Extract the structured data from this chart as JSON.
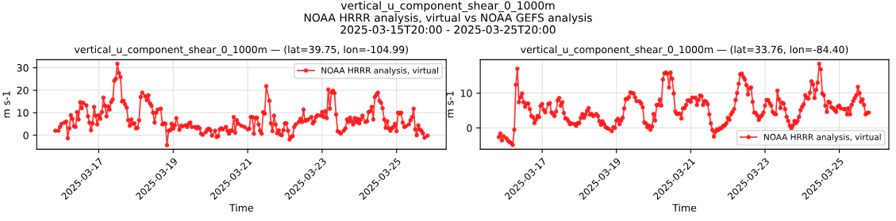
{
  "chart_data": [
    {
      "type": "line",
      "title": "vertical_u_component_shear_0_1000m — (lat=39.75, lon=-104.99)",
      "xlabel": "Time",
      "ylabel": "m s-1",
      "annotations": [
        "vertical_u_component_shear_0_1000m\nNOAA HRRR analysis, virtual vs NOAA GEFS analysis\n2025-03-15T20:00 - 2025-03-25T20:00"
      ],
      "xlim": [
        "2025-03-15T08:00",
        "2025-03-26T08:00"
      ],
      "xticks": [
        "2025-03-17",
        "2025-03-19",
        "2025-03-21",
        "2025-03-23",
        "2025-03-25"
      ],
      "ylim": [
        -6.2,
        33.6
      ],
      "yticks": [
        0,
        10,
        20,
        30
      ],
      "grid": true,
      "legend": "top right",
      "marker": "circle",
      "line_style": "solid",
      "series": [
        {
          "name": "NOAA HRRR analysis, virtual",
          "color": "#ff1a1a",
          "x": [
            "2025-03-15T20:00",
            "2025-03-15T22:00",
            "2025-03-15T23:00",
            "2025-03-16T00:00",
            "2025-03-16T02:00",
            "2025-03-16T03:00",
            "2025-03-16T04:00",
            "2025-03-16T05:00",
            "2025-03-16T06:00",
            "2025-03-16T07:00",
            "2025-03-16T08:00",
            "2025-03-16T09:00",
            "2025-03-16T10:00",
            "2025-03-16T11:00",
            "2025-03-16T12:00",
            "2025-03-16T13:00",
            "2025-03-16T14:00",
            "2025-03-16T16:00",
            "2025-03-16T17:00",
            "2025-03-16T18:00",
            "2025-03-16T19:00",
            "2025-03-16T20:00",
            "2025-03-16T21:00",
            "2025-03-16T22:00",
            "2025-03-16T23:00",
            "2025-03-17T00:00",
            "2025-03-17T01:00",
            "2025-03-17T02:00",
            "2025-03-17T03:00",
            "2025-03-17T04:00",
            "2025-03-17T05:00",
            "2025-03-17T06:00",
            "2025-03-17T07:00",
            "2025-03-17T08:00",
            "2025-03-17T09:00",
            "2025-03-17T10:00",
            "2025-03-17T11:00",
            "2025-03-17T12:00",
            "2025-03-17T13:00",
            "2025-03-17T14:00",
            "2025-03-17T15:00",
            "2025-03-17T16:00",
            "2025-03-17T17:00",
            "2025-03-17T18:00",
            "2025-03-17T19:00",
            "2025-03-17T20:00",
            "2025-03-17T21:00",
            "2025-03-17T22:00",
            "2025-03-17T23:00",
            "2025-03-18T00:00",
            "2025-03-18T01:00",
            "2025-03-18T02:00",
            "2025-03-18T03:00",
            "2025-03-18T04:00",
            "2025-03-18T06:00",
            "2025-03-18T07:00",
            "2025-03-18T08:00",
            "2025-03-18T09:00",
            "2025-03-18T10:00",
            "2025-03-18T11:00",
            "2025-03-18T12:00",
            "2025-03-18T13:00",
            "2025-03-18T14:00",
            "2025-03-18T16:00",
            "2025-03-18T17:00",
            "2025-03-18T18:00",
            "2025-03-18T19:00",
            "2025-03-18T20:00",
            "2025-03-18T21:00",
            "2025-03-18T22:00",
            "2025-03-18T23:00",
            "2025-03-19T00:00",
            "2025-03-19T01:00",
            "2025-03-19T02:00",
            "2025-03-19T04:00",
            "2025-03-19T05:00",
            "2025-03-19T06:00",
            "2025-03-19T08:00",
            "2025-03-19T09:00",
            "2025-03-19T10:00",
            "2025-03-19T11:00",
            "2025-03-19T12:00",
            "2025-03-19T14:00",
            "2025-03-19T15:00",
            "2025-03-19T16:00",
            "2025-03-19T17:00",
            "2025-03-19T18:00",
            "2025-03-19T19:00",
            "2025-03-19T21:00",
            "2025-03-19T22:00",
            "2025-03-19T23:00",
            "2025-03-20T00:00",
            "2025-03-20T01:00",
            "2025-03-20T03:00",
            "2025-03-20T04:00",
            "2025-03-20T05:00",
            "2025-03-20T06:00",
            "2025-03-20T07:00",
            "2025-03-20T08:00",
            "2025-03-20T10:00",
            "2025-03-20T11:00",
            "2025-03-20T12:00",
            "2025-03-20T13:00",
            "2025-03-20T14:00",
            "2025-03-20T15:00",
            "2025-03-20T16:00",
            "2025-03-20T17:00",
            "2025-03-20T18:00",
            "2025-03-20T20:00",
            "2025-03-20T22:00",
            "2025-03-21T00:00",
            "2025-03-21T01:00",
            "2025-03-21T02:00",
            "2025-03-21T03:00",
            "2025-03-21T04:00",
            "2025-03-21T05:00",
            "2025-03-21T06:00",
            "2025-03-21T07:00",
            "2025-03-21T08:00",
            "2025-03-21T09:00",
            "2025-03-21T10:00",
            "2025-03-21T11:00",
            "2025-03-21T12:00",
            "2025-03-21T14:00",
            "2025-03-21T15:00",
            "2025-03-21T16:00",
            "2025-03-21T17:00",
            "2025-03-21T18:00",
            "2025-03-21T19:00",
            "2025-03-21T20:00",
            "2025-03-21T21:00",
            "2025-03-21T22:00",
            "2025-03-21T23:00",
            "2025-03-22T00:00",
            "2025-03-22T01:00",
            "2025-03-22T02:00",
            "2025-03-22T03:00",
            "2025-03-22T04:00",
            "2025-03-22T05:00",
            "2025-03-22T06:00",
            "2025-03-22T07:00",
            "2025-03-22T09:00",
            "2025-03-22T10:00",
            "2025-03-22T11:00",
            "2025-03-22T12:00",
            "2025-03-22T13:00",
            "2025-03-22T14:00",
            "2025-03-22T15:00",
            "2025-03-22T17:00",
            "2025-03-22T18:00",
            "2025-03-22T19:00",
            "2025-03-22T20:00",
            "2025-03-22T21:00",
            "2025-03-22T23:00",
            "2025-03-23T00:00",
            "2025-03-23T01:00",
            "2025-03-23T02:00",
            "2025-03-23T03:00",
            "2025-03-23T04:00",
            "2025-03-23T05:00",
            "2025-03-23T06:00",
            "2025-03-23T07:00",
            "2025-03-23T08:00",
            "2025-03-23T09:00",
            "2025-03-23T10:00",
            "2025-03-23T11:00",
            "2025-03-23T12:00",
            "2025-03-23T14:00",
            "2025-03-23T15:00",
            "2025-03-23T16:00",
            "2025-03-23T17:00",
            "2025-03-23T18:00",
            "2025-03-23T19:00",
            "2025-03-23T20:00",
            "2025-03-23T21:00",
            "2025-03-23T22:00",
            "2025-03-23T23:00",
            "2025-03-24T00:00",
            "2025-03-24T01:00",
            "2025-03-24T02:00",
            "2025-03-24T04:00",
            "2025-03-24T05:00",
            "2025-03-24T06:00",
            "2025-03-24T07:00",
            "2025-03-24T08:00",
            "2025-03-24T09:00",
            "2025-03-24T10:00",
            "2025-03-24T11:00",
            "2025-03-24T12:00",
            "2025-03-24T13:00",
            "2025-03-24T14:00",
            "2025-03-24T15:00",
            "2025-03-24T16:00",
            "2025-03-24T17:00",
            "2025-03-24T18:00",
            "2025-03-24T19:00",
            "2025-03-24T20:00",
            "2025-03-24T21:00",
            "2025-03-24T22:00",
            "2025-03-24T23:00",
            "2025-03-25T00:00",
            "2025-03-25T01:00",
            "2025-03-25T02:00",
            "2025-03-25T03:00",
            "2025-03-25T04:00",
            "2025-03-25T05:00",
            "2025-03-25T06:00",
            "2025-03-25T08:00",
            "2025-03-25T09:00",
            "2025-03-25T10:00",
            "2025-03-25T11:00",
            "2025-03-25T12:00",
            "2025-03-25T13:00",
            "2025-03-25T14:00",
            "2025-03-25T15:00",
            "2025-03-25T16:00",
            "2025-03-25T17:00",
            "2025-03-25T18:00",
            "2025-03-25T20:00"
          ],
          "values": [
            2,
            2,
            3.7,
            5.1,
            5.6,
            6.1,
            -1.3,
            3.1,
            8.9,
            7.3,
            4,
            3.7,
            10.3,
            7,
            14.7,
            12,
            14.4,
            13.3,
            8.4,
            5.6,
            2.2,
            5.3,
            12.6,
            8.7,
            4.8,
            8.9,
            7.3,
            10.3,
            16.7,
            13.1,
            8.4,
            12.8,
            11.4,
            14.8,
            15.9,
            24.2,
            25.1,
            31.8,
            27.6,
            25.9,
            15,
            15.3,
            13.7,
            12.2,
            6.7,
            4.2,
            7,
            5.1,
            5.3,
            3.1,
            3.3,
            6.7,
            17,
            18.9,
            17.3,
            15.6,
            17.8,
            14.2,
            13.1,
            10,
            5.6,
            10,
            11.4,
            11.8,
            4.8,
            5.3,
            5.1,
            -4.4,
            2,
            2.2,
            5.1,
            2.9,
            4.4,
            7.6,
            2.4,
            4.2,
            4,
            4.4,
            3.7,
            5.1,
            5.6,
            3.7,
            3.7,
            3.1,
            3.7,
            3.1,
            0.7,
            0.2,
            1.4,
            2.6,
            2.9,
            2.2,
            -0.2,
            2,
            -0.8,
            -0.4,
            2.6,
            3.1,
            2.6,
            3.7,
            2,
            0.7,
            2,
            2,
            8.1,
            1.1,
            6.7,
            5.1,
            4.2,
            3.7,
            2.6,
            2.9,
            8.1,
            8.1,
            0.7,
            7.6,
            7.8,
            4.8,
            2,
            0.7,
            10.3,
            9.6,
            21.8,
            15.3,
            5.3,
            1.8,
            8.7,
            4.8,
            0.9,
            2.2,
            0.3,
            0,
            2.2,
            5.3,
            5.3,
            2,
            -1.9,
            -0.8,
            -0.4,
            3.7,
            4.8,
            5.9,
            7.3,
            5.9,
            11.4,
            6.4,
            6.7,
            7,
            8.1,
            5.3,
            6.2,
            8.1,
            8.9,
            8.7,
            10.3,
            8.1,
            10.7,
            7.6,
            20.3,
            11.8,
            18.9,
            19.8,
            18.7,
            9.2,
            1.8,
            1.4,
            0.7,
            2,
            3.1,
            7,
            5.9,
            7.8,
            6.2,
            4.8,
            7.6,
            5.9,
            7.3,
            5.3,
            7,
            8.7,
            5.9,
            6.2,
            10.3,
            10.7,
            12.6,
            7,
            17,
            18.1,
            18.9,
            15.3,
            14.4,
            12,
            7,
            3.3,
            6.2,
            3.1,
            2,
            3.1,
            3.7,
            5.1,
            1.8,
            10,
            9.6,
            10,
            5.6,
            3.7,
            4,
            4.8,
            6.7,
            8.1,
            11.8,
            2.6,
            0,
            4.4,
            2.6,
            2,
            0.9,
            -1.1,
            -0.2
          ]
        }
      ]
    },
    {
      "type": "line",
      "title": "vertical_u_component_shear_0_1000m — (lat=33.76, lon=-84.40)",
      "xlabel": "Time",
      "ylabel": "m s-1",
      "xlim": [
        "2025-03-15T08:00",
        "2025-03-26T08:00"
      ],
      "xticks": [
        "2025-03-17",
        "2025-03-19",
        "2025-03-21",
        "2025-03-23",
        "2025-03-25"
      ],
      "ylim": [
        -6.1,
        19.6
      ],
      "yticks": [
        0,
        10
      ],
      "grid": true,
      "legend": "bottom right",
      "marker": "circle",
      "line_style": "solid",
      "series": [
        {
          "name": "NOAA HRRR analysis, virtual",
          "color": "#ff1a1a",
          "x": [
            "2025-03-15T20:00",
            "2025-03-15T21:00",
            "2025-03-15T22:00",
            "2025-03-15T23:00",
            "2025-03-16T01:00",
            "2025-03-16T02:00",
            "2025-03-16T03:00",
            "2025-03-16T04:00",
            "2025-03-16T05:00",
            "2025-03-16T06:00",
            "2025-03-16T07:00",
            "2025-03-16T08:00",
            "2025-03-16T09:00",
            "2025-03-16T10:00",
            "2025-03-16T11:00",
            "2025-03-16T12:00",
            "2025-03-16T13:00",
            "2025-03-16T14:00",
            "2025-03-16T15:00",
            "2025-03-16T16:00",
            "2025-03-16T17:00",
            "2025-03-16T18:00",
            "2025-03-16T19:00",
            "2025-03-16T20:00",
            "2025-03-16T21:00",
            "2025-03-16T22:00",
            "2025-03-16T23:00",
            "2025-03-17T00:00",
            "2025-03-17T01:00",
            "2025-03-17T02:00",
            "2025-03-17T04:00",
            "2025-03-17T05:00",
            "2025-03-17T06:00",
            "2025-03-17T07:00",
            "2025-03-17T08:00",
            "2025-03-17T09:00",
            "2025-03-17T10:00",
            "2025-03-17T11:00",
            "2025-03-17T12:00",
            "2025-03-17T13:00",
            "2025-03-17T14:00",
            "2025-03-17T15:00",
            "2025-03-17T16:00",
            "2025-03-17T17:00",
            "2025-03-17T18:00",
            "2025-03-17T19:00",
            "2025-03-17T21:00",
            "2025-03-17T22:00",
            "2025-03-17T23:00",
            "2025-03-18T00:00",
            "2025-03-18T01:00",
            "2025-03-18T02:00",
            "2025-03-18T03:00",
            "2025-03-18T04:00",
            "2025-03-18T05:00",
            "2025-03-18T06:00",
            "2025-03-18T07:00",
            "2025-03-18T08:00",
            "2025-03-18T09:00",
            "2025-03-18T11:00",
            "2025-03-18T12:00",
            "2025-03-18T13:00",
            "2025-03-18T14:00",
            "2025-03-18T15:00",
            "2025-03-18T16:00",
            "2025-03-18T17:00",
            "2025-03-18T18:00",
            "2025-03-18T19:00",
            "2025-03-18T21:00",
            "2025-03-18T22:00",
            "2025-03-18T23:00",
            "2025-03-19T00:00",
            "2025-03-19T01:00",
            "2025-03-19T02:00",
            "2025-03-19T03:00",
            "2025-03-19T04:00",
            "2025-03-19T05:00",
            "2025-03-19T06:00",
            "2025-03-19T07:00",
            "2025-03-19T08:00",
            "2025-03-19T09:00",
            "2025-03-19T10:00",
            "2025-03-19T11:00",
            "2025-03-19T12:00",
            "2025-03-19T13:00",
            "2025-03-19T15:00",
            "2025-03-19T16:00",
            "2025-03-19T17:00",
            "2025-03-19T18:00",
            "2025-03-19T19:00",
            "2025-03-19T20:00",
            "2025-03-19T21:00",
            "2025-03-19T22:00",
            "2025-03-19T23:00",
            "2025-03-20T00:00",
            "2025-03-20T01:00",
            "2025-03-20T02:00",
            "2025-03-20T03:00",
            "2025-03-20T04:00",
            "2025-03-20T05:00",
            "2025-03-20T06:00",
            "2025-03-20T07:00",
            "2025-03-20T08:00",
            "2025-03-20T09:00",
            "2025-03-20T10:00",
            "2025-03-20T11:00",
            "2025-03-20T12:00",
            "2025-03-20T13:00",
            "2025-03-20T14:00",
            "2025-03-20T15:00",
            "2025-03-20T16:00",
            "2025-03-20T17:00",
            "2025-03-20T18:00",
            "2025-03-20T19:00",
            "2025-03-20T20:00",
            "2025-03-20T21:00",
            "2025-03-20T22:00",
            "2025-03-20T23:00",
            "2025-03-21T00:00",
            "2025-03-21T01:00",
            "2025-03-21T03:00",
            "2025-03-21T04:00",
            "2025-03-21T05:00",
            "2025-03-21T06:00",
            "2025-03-21T07:00",
            "2025-03-21T08:00",
            "2025-03-21T09:00",
            "2025-03-21T10:00",
            "2025-03-21T11:00",
            "2025-03-21T12:00",
            "2025-03-21T13:00",
            "2025-03-21T14:00",
            "2025-03-21T15:00",
            "2025-03-21T16:00",
            "2025-03-21T17:00",
            "2025-03-21T18:00",
            "2025-03-21T19:00",
            "2025-03-21T20:00",
            "2025-03-21T21:00",
            "2025-03-21T22:00",
            "2025-03-21T23:00",
            "2025-03-22T00:00",
            "2025-03-22T01:00",
            "2025-03-22T02:00",
            "2025-03-22T03:00",
            "2025-03-22T04:00",
            "2025-03-22T05:00",
            "2025-03-22T06:00",
            "2025-03-22T07:00",
            "2025-03-22T08:00",
            "2025-03-22T09:00",
            "2025-03-22T10:00",
            "2025-03-22T11:00",
            "2025-03-22T12:00",
            "2025-03-22T13:00",
            "2025-03-22T14:00",
            "2025-03-22T15:00",
            "2025-03-22T16:00",
            "2025-03-22T17:00",
            "2025-03-22T18:00",
            "2025-03-22T19:00",
            "2025-03-22T20:00",
            "2025-03-22T21:00",
            "2025-03-22T22:00",
            "2025-03-22T23:00",
            "2025-03-23T00:00",
            "2025-03-23T01:00",
            "2025-03-23T02:00",
            "2025-03-23T03:00",
            "2025-03-23T04:00",
            "2025-03-23T05:00",
            "2025-03-23T06:00",
            "2025-03-23T07:00",
            "2025-03-23T08:00",
            "2025-03-23T09:00",
            "2025-03-23T10:00",
            "2025-03-23T11:00",
            "2025-03-23T12:00",
            "2025-03-23T13:00",
            "2025-03-23T14:00",
            "2025-03-23T15:00",
            "2025-03-23T16:00",
            "2025-03-23T17:00",
            "2025-03-23T18:00",
            "2025-03-23T19:00",
            "2025-03-23T20:00",
            "2025-03-23T21:00",
            "2025-03-23T22:00",
            "2025-03-23T23:00",
            "2025-03-24T00:00",
            "2025-03-24T01:00",
            "2025-03-24T02:00",
            "2025-03-24T03:00",
            "2025-03-24T04:00",
            "2025-03-24T05:00",
            "2025-03-24T06:00",
            "2025-03-24T07:00",
            "2025-03-24T08:00",
            "2025-03-24T09:00",
            "2025-03-24T10:00",
            "2025-03-24T11:00",
            "2025-03-24T12:00",
            "2025-03-24T13:00",
            "2025-03-24T14:00",
            "2025-03-24T15:00",
            "2025-03-24T16:00",
            "2025-03-24T17:00",
            "2025-03-24T18:00",
            "2025-03-24T19:00",
            "2025-03-24T20:00",
            "2025-03-24T21:00",
            "2025-03-24T22:00",
            "2025-03-24T23:00",
            "2025-03-25T00:00",
            "2025-03-25T01:00",
            "2025-03-25T03:00",
            "2025-03-25T04:00",
            "2025-03-25T05:00",
            "2025-03-25T06:00",
            "2025-03-25T07:00",
            "2025-03-25T08:00",
            "2025-03-25T09:00",
            "2025-03-25T10:00",
            "2025-03-25T11:00",
            "2025-03-25T12:00",
            "2025-03-25T13:00",
            "2025-03-25T14:00",
            "2025-03-25T15:00",
            "2025-03-25T16:00",
            "2025-03-25T17:00",
            "2025-03-25T18:00",
            "2025-03-25T19:00"
          ],
          "values": [
            -2.6,
            -1.6,
            -3.6,
            -2.4,
            -3,
            -3.7,
            -4.1,
            -4.3,
            -4.9,
            -0.5,
            12.4,
            17,
            7.4,
            8.8,
            9.9,
            7.4,
            6.1,
            7,
            7,
            5.4,
            3.4,
            3.1,
            1.4,
            2.4,
            3.4,
            3.1,
            6.3,
            6.9,
            5.2,
            4.5,
            6.9,
            7.1,
            4.5,
            4,
            3.4,
            4.7,
            7.9,
            8.6,
            6.4,
            7.4,
            4.3,
            2.7,
            2.6,
            1.9,
            1.1,
            1.3,
            1.1,
            0.6,
            1.4,
            1.4,
            2.9,
            4,
            2.9,
            3.8,
            4.9,
            5.7,
            3.8,
            4,
            3.4,
            4,
            3.4,
            1.9,
            0.9,
            1.9,
            1.1,
            0.2,
            0,
            -0.3,
            -0.9,
            0.2,
            0,
            2.1,
            2.6,
            1.1,
            2.1,
            2.9,
            5.6,
            8.3,
            8.3,
            8.8,
            10.2,
            10,
            9.9,
            8.8,
            7.7,
            7.6,
            7,
            5.9,
            1.6,
            1.3,
            0.2,
            0.7,
            -0.5,
            0.4,
            4,
            2.1,
            6.6,
            6.6,
            8.1,
            6.4,
            13.9,
            15.7,
            15.9,
            15.6,
            11.6,
            15.9,
            14.1,
            9.9,
            4.7,
            4,
            4.1,
            4.1,
            2.7,
            5.6,
            5.7,
            6.6,
            7.9,
            7.9,
            7.5,
            8.7,
            8.7,
            6.6,
            8,
            9.3,
            9.1,
            6.6,
            7.7,
            7.5,
            6.8,
            3.9,
            1.3,
            -0.6,
            -2.5,
            -1.1,
            -0.4,
            -0.6,
            -0.1,
            0,
            0.6,
            0.7,
            1.3,
            2.9,
            2.3,
            3.9,
            4.6,
            5.4,
            8,
            10,
            12.7,
            15.4,
            15.6,
            14.6,
            13.9,
            12.3,
            9.6,
            11.4,
            11.6,
            7.5,
            4.4,
            4.3,
            3.6,
            2.3,
            3.2,
            3.6,
            4.4,
            6.4,
            8,
            8,
            7.1,
            6.4,
            4.6,
            4.1,
            3.9,
            10.7,
            8.2,
            5.7,
            7.3,
            7,
            5.4,
            3.2,
            2,
            0.7,
            -0.1,
            0.7,
            2,
            1.4,
            2,
            3.2,
            5.1,
            6.1,
            6.8,
            9.4,
            8.7,
            8.4,
            10.1,
            13.4,
            12.5,
            8.6,
            10.9,
            13,
            18.4,
            16.8,
            9.9,
            9.4,
            6.4,
            4.6,
            7.5,
            7.3,
            5.9,
            5.7,
            5.1,
            4.6,
            6.1,
            6.4,
            5.6,
            5.4,
            5.4,
            3.9,
            5.7,
            3.9,
            6.6,
            7.7,
            8.6,
            9.4,
            11.8,
            10,
            7.5,
            8.2,
            6.6,
            3.9,
            4.3,
            4.4
          ]
        }
      ]
    }
  ]
}
